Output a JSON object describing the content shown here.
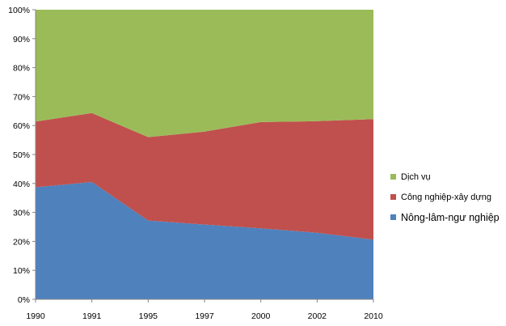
{
  "chart_data": {
    "type": "area",
    "stacked": "percent",
    "title": "",
    "xlabel": "",
    "ylabel": "",
    "x": [
      "1990",
      "1991",
      "1995",
      "1997",
      "2000",
      "2002",
      "2010"
    ],
    "ylim": [
      0,
      100
    ],
    "yticks": [
      "0%",
      "10%",
      "20%",
      "30%",
      "40%",
      "50%",
      "60%",
      "70%",
      "80%",
      "90%",
      "100%"
    ],
    "grid": false,
    "legend_position": "right",
    "series": [
      {
        "name": "Nông-lâm-ngư nghiệp",
        "values": [
          38.7,
          40.5,
          27.2,
          25.8,
          24.5,
          23.0,
          20.6
        ],
        "color": "#4f81bd"
      },
      {
        "name": "Công nghiệp-xây dựng",
        "values": [
          22.7,
          23.8,
          28.8,
          32.1,
          36.7,
          38.5,
          41.6
        ],
        "color": "#c0504d"
      },
      {
        "name": "Dịch vụ",
        "values": [
          38.6,
          35.7,
          44.0,
          42.1,
          38.8,
          38.5,
          37.8
        ],
        "color": "#9bbb59"
      }
    ]
  },
  "legend": {
    "items": [
      {
        "label": "Dịch vụ",
        "color": "#9bbb59"
      },
      {
        "label": "Công nghiệp-xây dựng",
        "color": "#c0504d"
      },
      {
        "label": "Nông-lâm-ngư nghiệp",
        "color": "#4f81bd"
      }
    ]
  }
}
